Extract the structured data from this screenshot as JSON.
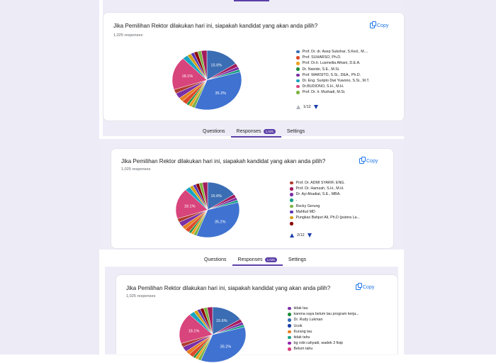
{
  "question_title": "Jika Pemilihan Rektor dilakukan hari ini, siapakah kandidat yang akan anda pilih?",
  "responses_count": "1,025 responses",
  "copy_label": "Copy",
  "tabs": {
    "questions": "Questions",
    "responses": "Responses",
    "badge": "1,025",
    "settings": "Settings"
  },
  "colors": {
    "accent": "#5b3fa8",
    "link": "#1a73e8"
  },
  "chart_data": [
    {
      "type": "pie",
      "slices": [
        {
          "label": "",
          "value": 15.6,
          "color": "#3a6db3"
        },
        {
          "label": "",
          "value": 35.2,
          "color": "#3f72d1"
        },
        {
          "label": "",
          "value": 18.1,
          "color": "#d8447c"
        }
      ]
    },
    {
      "type": "pie",
      "slices": [
        {
          "label": "",
          "value": 15.6,
          "color": "#3a6db3"
        },
        {
          "label": "",
          "value": 35.2,
          "color": "#3f72d1"
        },
        {
          "label": "",
          "value": 18.1,
          "color": "#d8447c"
        }
      ]
    },
    {
      "type": "pie",
      "slices": [
        {
          "label": "",
          "value": 15.6,
          "color": "#3a6db3"
        },
        {
          "label": "",
          "value": 35.2,
          "color": "#3f72d1"
        },
        {
          "label": "",
          "value": 18.1,
          "color": "#d8447c"
        }
      ]
    }
  ],
  "pie_percent_labels": [
    "15.6%",
    "35.2%",
    "18.1%"
  ],
  "cards": [
    {
      "legend": [
        {
          "label": "Prof. Dr. dr. Asep Sukohar, S.Ked., M....",
          "color": "#3a6db3"
        },
        {
          "label": "Prof. SUHARSO, Ph.D.",
          "color": "#dc4a2a"
        },
        {
          "label": "Prof. Dr.Ir. Lusmeilia Afriani, D.E.A.",
          "color": "#f0a020"
        },
        {
          "label": "Dr. Nairobi, S.E., M.Si.",
          "color": "#1e8e3e"
        },
        {
          "label": "Prof. WARSITO, S.Si., DEA., Ph.D.",
          "color": "#7b2fa6"
        },
        {
          "label": "Dr. Eng. Suripto Dwi Yuwono, S.Si., M.T.",
          "color": "#1aa3c2"
        },
        {
          "label": "Dr.BUDIONO, S.H., M.H.",
          "color": "#d8447c"
        },
        {
          "label": "Prof. Dr. Ir. Murhadi, M.Si.",
          "color": "#7cb342"
        }
      ],
      "pager": "1/12"
    },
    {
      "legend": [
        {
          "label": "Prof. Dr. ADMI SYARIF, ENG.",
          "color": "#b03a2e"
        },
        {
          "label": "Prof. Dr. Hamzah, S.H., M.H.",
          "color": "#a21c5c"
        },
        {
          "label": "Dr. Ayi Ahadiat, S.E., MBA.",
          "color": "#7b2fa6"
        },
        {
          "label": "-",
          "color": "#16a085"
        },
        {
          "label": "Rocky Gerung",
          "color": "#7cb342"
        },
        {
          "label": "Mahfud MD",
          "color": "#5e35b1"
        },
        {
          "label": "Pungkas Bahjuri Ali, Ph.D (putera La...",
          "color": "#d4a017"
        },
        {
          "label": "",
          "color": "#8b0000"
        }
      ],
      "pager": "2/12"
    },
    {
      "legend": [
        {
          "label": "tidak tau",
          "color": "#7b2fa6"
        },
        {
          "label": "karena saya belum tau program kerja...",
          "color": "#1e8e3e"
        },
        {
          "label": "Dr. Rudy Lukman",
          "color": "#3a6db3"
        },
        {
          "label": "Ucok",
          "color": "#1a3da8"
        },
        {
          "label": "Kurang tau",
          "color": "#e67e22"
        },
        {
          "label": "tidak tahu",
          "color": "#16a085"
        },
        {
          "label": "bg robi cahyadi, wadek 3 fisip",
          "color": "#8e24aa"
        },
        {
          "label": "Belum tahu",
          "color": "#d8447c"
        }
      ]
    }
  ]
}
